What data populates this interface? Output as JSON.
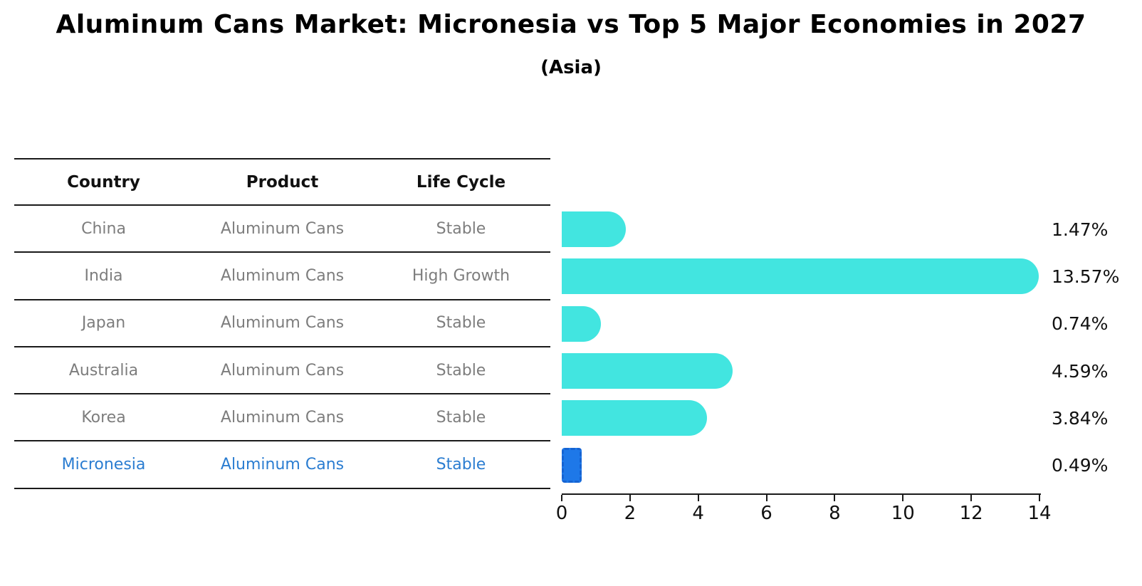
{
  "title": "Aluminum Cans Market: Micronesia vs Top 5 Major Economies in 2027",
  "subtitle": "(Asia)",
  "table": {
    "headers": [
      "Country",
      "Product",
      "Life Cycle"
    ],
    "rows": [
      {
        "country": "China",
        "product": "Aluminum Cans",
        "life_cycle": "Stable",
        "highlight": false
      },
      {
        "country": "India",
        "product": "Aluminum Cans",
        "life_cycle": "High Growth",
        "highlight": false
      },
      {
        "country": "Japan",
        "product": "Aluminum Cans",
        "life_cycle": "Stable",
        "highlight": false
      },
      {
        "country": "Australia",
        "product": "Aluminum Cans",
        "life_cycle": "Stable",
        "highlight": false
      },
      {
        "country": "Korea",
        "product": "Aluminum Cans",
        "life_cycle": "Stable",
        "highlight": false
      },
      {
        "country": "Micronesia",
        "product": "Aluminum Cans",
        "life_cycle": "Stable",
        "highlight": true
      }
    ]
  },
  "chart_data": {
    "type": "bar",
    "orientation": "horizontal",
    "categories": [
      "China",
      "India",
      "Japan",
      "Australia",
      "Korea",
      "Micronesia"
    ],
    "values": [
      1.47,
      13.57,
      0.74,
      4.59,
      3.84,
      0.49
    ],
    "value_labels": [
      "1.47%",
      "13.57%",
      "0.74%",
      "4.59%",
      "3.84%",
      "0.49%"
    ],
    "highlight_index": 5,
    "xticks": [
      "0",
      "2",
      "4",
      "6",
      "8",
      "10",
      "12",
      "14"
    ],
    "xlim": [
      0,
      14
    ],
    "grid": false,
    "legend": false,
    "title": "Aluminum Cans Market: Micronesia vs Top 5 Major Economies in 2027 (Asia)"
  },
  "colors": {
    "bar": "#42e5e0",
    "highlight_bar_fill": "#1e78e8",
    "highlight_bar_border": "#1563d2",
    "table_text": "#7d7d7d",
    "highlight_text": "#2b7dd1",
    "axis": "#1a1a1a",
    "title_text": "#000000"
  }
}
